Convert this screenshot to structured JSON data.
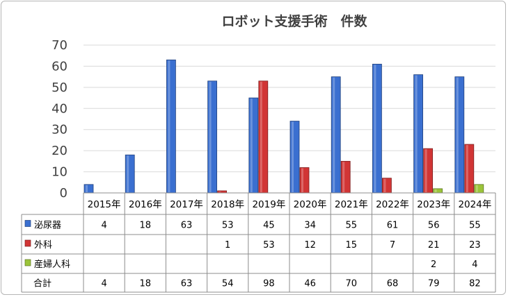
{
  "chart_data": {
    "type": "bar",
    "title": "ロボット支援手術　件数",
    "categories": [
      "2015年",
      "2016年",
      "2017年",
      "2018年",
      "2019年",
      "2020年",
      "2021年",
      "2022年",
      "2023年",
      "2024年"
    ],
    "ylim": [
      0,
      70
    ],
    "yticks": [
      "0",
      "10",
      "20",
      "30",
      "40",
      "50",
      "60",
      "70"
    ],
    "grid": true,
    "legend": "table",
    "series": [
      {
        "name": "泌尿器",
        "color": "#3a6fd0",
        "values": [
          4,
          18,
          63,
          53,
          45,
          34,
          55,
          61,
          56,
          55
        ]
      },
      {
        "name": "外科",
        "color": "#d13535",
        "values": [
          null,
          null,
          null,
          1,
          53,
          12,
          15,
          7,
          21,
          23
        ]
      },
      {
        "name": "産婦人科",
        "color": "#9bc43a",
        "values": [
          null,
          null,
          null,
          null,
          null,
          null,
          null,
          null,
          2,
          4
        ]
      }
    ],
    "total_row": {
      "name": "合計",
      "values": [
        4,
        18,
        63,
        54,
        98,
        46,
        70,
        68,
        79,
        82
      ]
    }
  }
}
